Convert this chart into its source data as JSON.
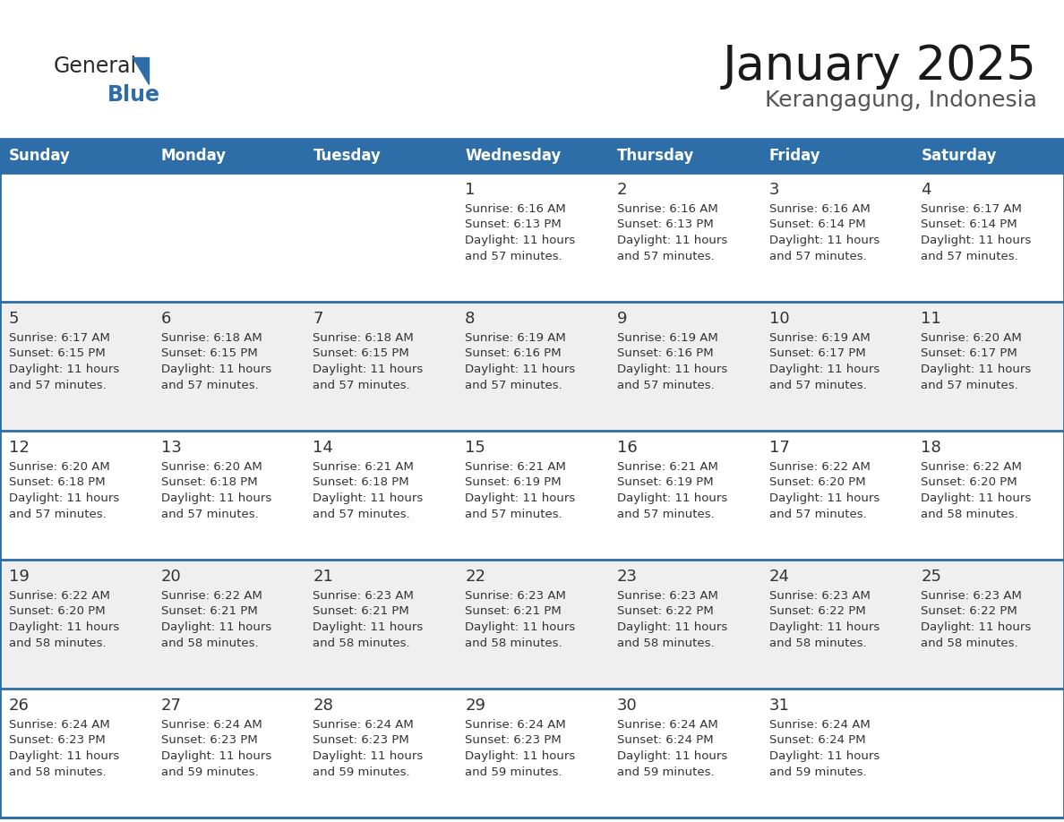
{
  "title": "January 2025",
  "subtitle": "Kerangagung, Indonesia",
  "days_of_week": [
    "Sunday",
    "Monday",
    "Tuesday",
    "Wednesday",
    "Thursday",
    "Friday",
    "Saturday"
  ],
  "header_bg": "#2D6EA8",
  "header_text_color": "#FFFFFF",
  "cell_bg_light": "#EFEFEF",
  "cell_bg_white": "#FFFFFF",
  "cell_border_color": "#2D6EA8",
  "day_number_color": "#333333",
  "text_color": "#333333",
  "calendar_data": [
    {
      "day": 1,
      "col": 3,
      "row": 0,
      "sunrise": "6:16 AM",
      "sunset": "6:13 PM",
      "daylight": "11 hours and 57 minutes."
    },
    {
      "day": 2,
      "col": 4,
      "row": 0,
      "sunrise": "6:16 AM",
      "sunset": "6:13 PM",
      "daylight": "11 hours and 57 minutes."
    },
    {
      "day": 3,
      "col": 5,
      "row": 0,
      "sunrise": "6:16 AM",
      "sunset": "6:14 PM",
      "daylight": "11 hours and 57 minutes."
    },
    {
      "day": 4,
      "col": 6,
      "row": 0,
      "sunrise": "6:17 AM",
      "sunset": "6:14 PM",
      "daylight": "11 hours and 57 minutes."
    },
    {
      "day": 5,
      "col": 0,
      "row": 1,
      "sunrise": "6:17 AM",
      "sunset": "6:15 PM",
      "daylight": "11 hours and 57 minutes."
    },
    {
      "day": 6,
      "col": 1,
      "row": 1,
      "sunrise": "6:18 AM",
      "sunset": "6:15 PM",
      "daylight": "11 hours and 57 minutes."
    },
    {
      "day": 7,
      "col": 2,
      "row": 1,
      "sunrise": "6:18 AM",
      "sunset": "6:15 PM",
      "daylight": "11 hours and 57 minutes."
    },
    {
      "day": 8,
      "col": 3,
      "row": 1,
      "sunrise": "6:19 AM",
      "sunset": "6:16 PM",
      "daylight": "11 hours and 57 minutes."
    },
    {
      "day": 9,
      "col": 4,
      "row": 1,
      "sunrise": "6:19 AM",
      "sunset": "6:16 PM",
      "daylight": "11 hours and 57 minutes."
    },
    {
      "day": 10,
      "col": 5,
      "row": 1,
      "sunrise": "6:19 AM",
      "sunset": "6:17 PM",
      "daylight": "11 hours and 57 minutes."
    },
    {
      "day": 11,
      "col": 6,
      "row": 1,
      "sunrise": "6:20 AM",
      "sunset": "6:17 PM",
      "daylight": "11 hours and 57 minutes."
    },
    {
      "day": 12,
      "col": 0,
      "row": 2,
      "sunrise": "6:20 AM",
      "sunset": "6:18 PM",
      "daylight": "11 hours and 57 minutes."
    },
    {
      "day": 13,
      "col": 1,
      "row": 2,
      "sunrise": "6:20 AM",
      "sunset": "6:18 PM",
      "daylight": "11 hours and 57 minutes."
    },
    {
      "day": 14,
      "col": 2,
      "row": 2,
      "sunrise": "6:21 AM",
      "sunset": "6:18 PM",
      "daylight": "11 hours and 57 minutes."
    },
    {
      "day": 15,
      "col": 3,
      "row": 2,
      "sunrise": "6:21 AM",
      "sunset": "6:19 PM",
      "daylight": "11 hours and 57 minutes."
    },
    {
      "day": 16,
      "col": 4,
      "row": 2,
      "sunrise": "6:21 AM",
      "sunset": "6:19 PM",
      "daylight": "11 hours and 57 minutes."
    },
    {
      "day": 17,
      "col": 5,
      "row": 2,
      "sunrise": "6:22 AM",
      "sunset": "6:20 PM",
      "daylight": "11 hours and 57 minutes."
    },
    {
      "day": 18,
      "col": 6,
      "row": 2,
      "sunrise": "6:22 AM",
      "sunset": "6:20 PM",
      "daylight": "11 hours and 58 minutes."
    },
    {
      "day": 19,
      "col": 0,
      "row": 3,
      "sunrise": "6:22 AM",
      "sunset": "6:20 PM",
      "daylight": "11 hours and 58 minutes."
    },
    {
      "day": 20,
      "col": 1,
      "row": 3,
      "sunrise": "6:22 AM",
      "sunset": "6:21 PM",
      "daylight": "11 hours and 58 minutes."
    },
    {
      "day": 21,
      "col": 2,
      "row": 3,
      "sunrise": "6:23 AM",
      "sunset": "6:21 PM",
      "daylight": "11 hours and 58 minutes."
    },
    {
      "day": 22,
      "col": 3,
      "row": 3,
      "sunrise": "6:23 AM",
      "sunset": "6:21 PM",
      "daylight": "11 hours and 58 minutes."
    },
    {
      "day": 23,
      "col": 4,
      "row": 3,
      "sunrise": "6:23 AM",
      "sunset": "6:22 PM",
      "daylight": "11 hours and 58 minutes."
    },
    {
      "day": 24,
      "col": 5,
      "row": 3,
      "sunrise": "6:23 AM",
      "sunset": "6:22 PM",
      "daylight": "11 hours and 58 minutes."
    },
    {
      "day": 25,
      "col": 6,
      "row": 3,
      "sunrise": "6:23 AM",
      "sunset": "6:22 PM",
      "daylight": "11 hours and 58 minutes."
    },
    {
      "day": 26,
      "col": 0,
      "row": 4,
      "sunrise": "6:24 AM",
      "sunset": "6:23 PM",
      "daylight": "11 hours and 58 minutes."
    },
    {
      "day": 27,
      "col": 1,
      "row": 4,
      "sunrise": "6:24 AM",
      "sunset": "6:23 PM",
      "daylight": "11 hours and 59 minutes."
    },
    {
      "day": 28,
      "col": 2,
      "row": 4,
      "sunrise": "6:24 AM",
      "sunset": "6:23 PM",
      "daylight": "11 hours and 59 minutes."
    },
    {
      "day": 29,
      "col": 3,
      "row": 4,
      "sunrise": "6:24 AM",
      "sunset": "6:23 PM",
      "daylight": "11 hours and 59 minutes."
    },
    {
      "day": 30,
      "col": 4,
      "row": 4,
      "sunrise": "6:24 AM",
      "sunset": "6:24 PM",
      "daylight": "11 hours and 59 minutes."
    },
    {
      "day": 31,
      "col": 5,
      "row": 4,
      "sunrise": "6:24 AM",
      "sunset": "6:24 PM",
      "daylight": "11 hours and 59 minutes."
    }
  ],
  "num_rows": 5,
  "num_cols": 7,
  "logo_text_general": "General",
  "logo_text_blue": "Blue",
  "logo_triangle_color": "#2D6EA8",
  "title_fontsize": 38,
  "subtitle_fontsize": 18,
  "header_fontsize": 12,
  "day_number_fontsize": 13,
  "cell_text_fontsize": 9.5
}
